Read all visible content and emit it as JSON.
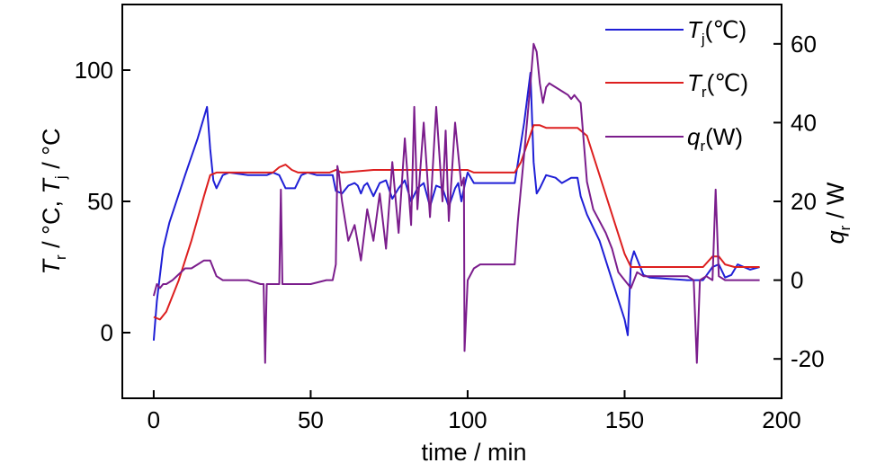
{
  "chart_data": {
    "type": "line",
    "xlabel": "time / min",
    "ylabel_left": "T_r / °C, T_j / °C",
    "ylabel_right": "q_r / W",
    "xlim": [
      -10,
      200
    ],
    "ylim_left": [
      -25,
      125
    ],
    "ylim_right": [
      -30,
      70
    ],
    "x_ticks": [
      0,
      50,
      100,
      150,
      200
    ],
    "y_left_ticks": [
      0,
      50,
      100
    ],
    "y_right_ticks": [
      -20,
      0,
      20,
      40,
      60
    ],
    "grid": false,
    "legend_position": "top-right",
    "series": [
      {
        "name": "Tj(℃)",
        "axis": "left",
        "color": "#1f1fd6",
        "legend": {
          "symbol": "T",
          "subscript": "j",
          "unit": "(℃)"
        },
        "points": [
          [
            0,
            -3
          ],
          [
            1,
            12
          ],
          [
            3,
            32
          ],
          [
            5,
            42
          ],
          [
            10,
            60
          ],
          [
            14,
            74
          ],
          [
            17,
            86
          ],
          [
            18,
            70
          ],
          [
            19,
            58
          ],
          [
            20,
            55
          ],
          [
            22,
            60
          ],
          [
            24,
            61
          ],
          [
            30,
            60
          ],
          [
            36,
            60
          ],
          [
            38,
            61
          ],
          [
            40,
            60
          ],
          [
            42,
            55
          ],
          [
            45,
            55
          ],
          [
            47,
            60
          ],
          [
            49,
            61
          ],
          [
            52,
            60
          ],
          [
            57,
            60
          ],
          [
            58,
            54
          ],
          [
            60,
            53
          ],
          [
            62,
            56
          ],
          [
            64,
            57
          ],
          [
            65,
            56
          ],
          [
            66,
            53
          ],
          [
            67,
            56
          ],
          [
            68,
            57
          ],
          [
            70,
            52
          ],
          [
            72,
            57
          ],
          [
            74,
            58
          ],
          [
            76,
            51
          ],
          [
            78,
            55
          ],
          [
            80,
            58
          ],
          [
            82,
            50
          ],
          [
            84,
            55
          ],
          [
            86,
            57
          ],
          [
            88,
            48
          ],
          [
            90,
            56
          ],
          [
            92,
            55
          ],
          [
            94,
            48
          ],
          [
            96,
            55
          ],
          [
            97,
            57
          ],
          [
            98,
            50
          ],
          [
            99,
            56
          ],
          [
            100,
            61
          ],
          [
            102,
            57
          ],
          [
            110,
            57
          ],
          [
            115,
            57
          ],
          [
            118,
            80
          ],
          [
            120,
            99
          ],
          [
            121,
            65
          ],
          [
            122,
            53
          ],
          [
            123,
            55
          ],
          [
            125,
            60
          ],
          [
            128,
            59
          ],
          [
            130,
            57
          ],
          [
            133,
            59
          ],
          [
            135,
            59
          ],
          [
            136,
            52
          ],
          [
            138,
            45
          ],
          [
            142,
            35
          ],
          [
            146,
            20
          ],
          [
            150,
            5
          ],
          [
            151,
            -1
          ],
          [
            152,
            27
          ],
          [
            153,
            31
          ],
          [
            154,
            28
          ],
          [
            156,
            22
          ],
          [
            158,
            21
          ],
          [
            170,
            20
          ],
          [
            175,
            20
          ],
          [
            178,
            25
          ],
          [
            180,
            26
          ],
          [
            182,
            21
          ],
          [
            184,
            22
          ],
          [
            186,
            26
          ],
          [
            190,
            24
          ],
          [
            193,
            25
          ]
        ]
      },
      {
        "name": "Tr(℃)",
        "axis": "left",
        "color": "#dd1f1f",
        "legend": {
          "symbol": "T",
          "subscript": "r",
          "unit": "(℃)"
        },
        "points": [
          [
            0,
            6
          ],
          [
            2,
            5
          ],
          [
            4,
            8
          ],
          [
            8,
            20
          ],
          [
            12,
            35
          ],
          [
            16,
            52
          ],
          [
            18,
            60
          ],
          [
            20,
            61
          ],
          [
            30,
            61
          ],
          [
            38,
            61
          ],
          [
            40,
            63
          ],
          [
            42,
            64
          ],
          [
            44,
            62
          ],
          [
            46,
            61
          ],
          [
            56,
            61
          ],
          [
            58,
            62
          ],
          [
            60,
            61
          ],
          [
            70,
            62
          ],
          [
            80,
            62
          ],
          [
            90,
            62
          ],
          [
            100,
            62
          ],
          [
            102,
            61
          ],
          [
            110,
            61
          ],
          [
            115,
            61
          ],
          [
            117,
            65
          ],
          [
            119,
            72
          ],
          [
            121,
            79
          ],
          [
            123,
            79
          ],
          [
            125,
            78
          ],
          [
            130,
            78
          ],
          [
            135,
            78
          ],
          [
            138,
            75
          ],
          [
            142,
            60
          ],
          [
            146,
            45
          ],
          [
            150,
            30
          ],
          [
            152,
            25
          ],
          [
            154,
            25
          ],
          [
            160,
            25
          ],
          [
            170,
            25
          ],
          [
            175,
            25
          ],
          [
            178,
            29
          ],
          [
            180,
            29
          ],
          [
            182,
            26
          ],
          [
            185,
            25
          ],
          [
            193,
            25
          ]
        ]
      },
      {
        "name": "qr(W)",
        "axis": "right",
        "color": "#7b1d8c",
        "legend": {
          "symbol": "q",
          "subscript": "r",
          "unit": "(W)"
        },
        "points": [
          [
            0,
            -4
          ],
          [
            1,
            -1
          ],
          [
            2,
            -2
          ],
          [
            3,
            -1
          ],
          [
            4,
            -1
          ],
          [
            6,
            0
          ],
          [
            10,
            3
          ],
          [
            12,
            3
          ],
          [
            14,
            4
          ],
          [
            16,
            5
          ],
          [
            18,
            5
          ],
          [
            19,
            3
          ],
          [
            20,
            1
          ],
          [
            22,
            0
          ],
          [
            30,
            0
          ],
          [
            34,
            -1
          ],
          [
            35,
            -1
          ],
          [
            35.5,
            -21
          ],
          [
            36,
            -1
          ],
          [
            40,
            -1
          ],
          [
            40.5,
            23
          ],
          [
            41,
            -1
          ],
          [
            45,
            -1
          ],
          [
            50,
            -1
          ],
          [
            55,
            0
          ],
          [
            57,
            0
          ],
          [
            58,
            4
          ],
          [
            58.5,
            29
          ],
          [
            59,
            27
          ],
          [
            60,
            20
          ],
          [
            62,
            10
          ],
          [
            64,
            14
          ],
          [
            66,
            5
          ],
          [
            68,
            18
          ],
          [
            70,
            10
          ],
          [
            72,
            22
          ],
          [
            74,
            8
          ],
          [
            76,
            30
          ],
          [
            78,
            12
          ],
          [
            80,
            36
          ],
          [
            82,
            14
          ],
          [
            83,
            44
          ],
          [
            84,
            18
          ],
          [
            86,
            40
          ],
          [
            88,
            16
          ],
          [
            90,
            44
          ],
          [
            92,
            20
          ],
          [
            93,
            38
          ],
          [
            94,
            15
          ],
          [
            96,
            40
          ],
          [
            98,
            24
          ],
          [
            98.8,
            26
          ],
          [
            99,
            -18
          ],
          [
            100,
            0
          ],
          [
            102,
            3
          ],
          [
            104,
            4
          ],
          [
            106,
            4
          ],
          [
            110,
            4
          ],
          [
            115,
            4
          ],
          [
            116,
            15
          ],
          [
            118,
            32
          ],
          [
            120,
            50
          ],
          [
            121,
            60
          ],
          [
            122,
            58
          ],
          [
            123,
            50
          ],
          [
            124,
            45
          ],
          [
            125,
            49
          ],
          [
            126,
            50
          ],
          [
            128,
            49
          ],
          [
            130,
            48
          ],
          [
            132,
            47
          ],
          [
            133,
            46
          ],
          [
            134,
            47
          ],
          [
            135,
            46
          ],
          [
            136,
            45
          ],
          [
            137,
            35
          ],
          [
            138,
            25
          ],
          [
            140,
            18
          ],
          [
            144,
            12
          ],
          [
            146,
            8
          ],
          [
            148,
            2
          ],
          [
            150,
            0
          ],
          [
            152,
            -2
          ],
          [
            154,
            2
          ],
          [
            156,
            1
          ],
          [
            160,
            1
          ],
          [
            170,
            1
          ],
          [
            172,
            0
          ],
          [
            173,
            -21
          ],
          [
            174,
            0
          ],
          [
            176,
            1
          ],
          [
            178,
            0
          ],
          [
            179,
            23
          ],
          [
            180,
            1
          ],
          [
            182,
            0
          ],
          [
            184,
            0
          ],
          [
            186,
            0
          ],
          [
            190,
            0
          ],
          [
            193,
            0
          ]
        ]
      }
    ]
  }
}
